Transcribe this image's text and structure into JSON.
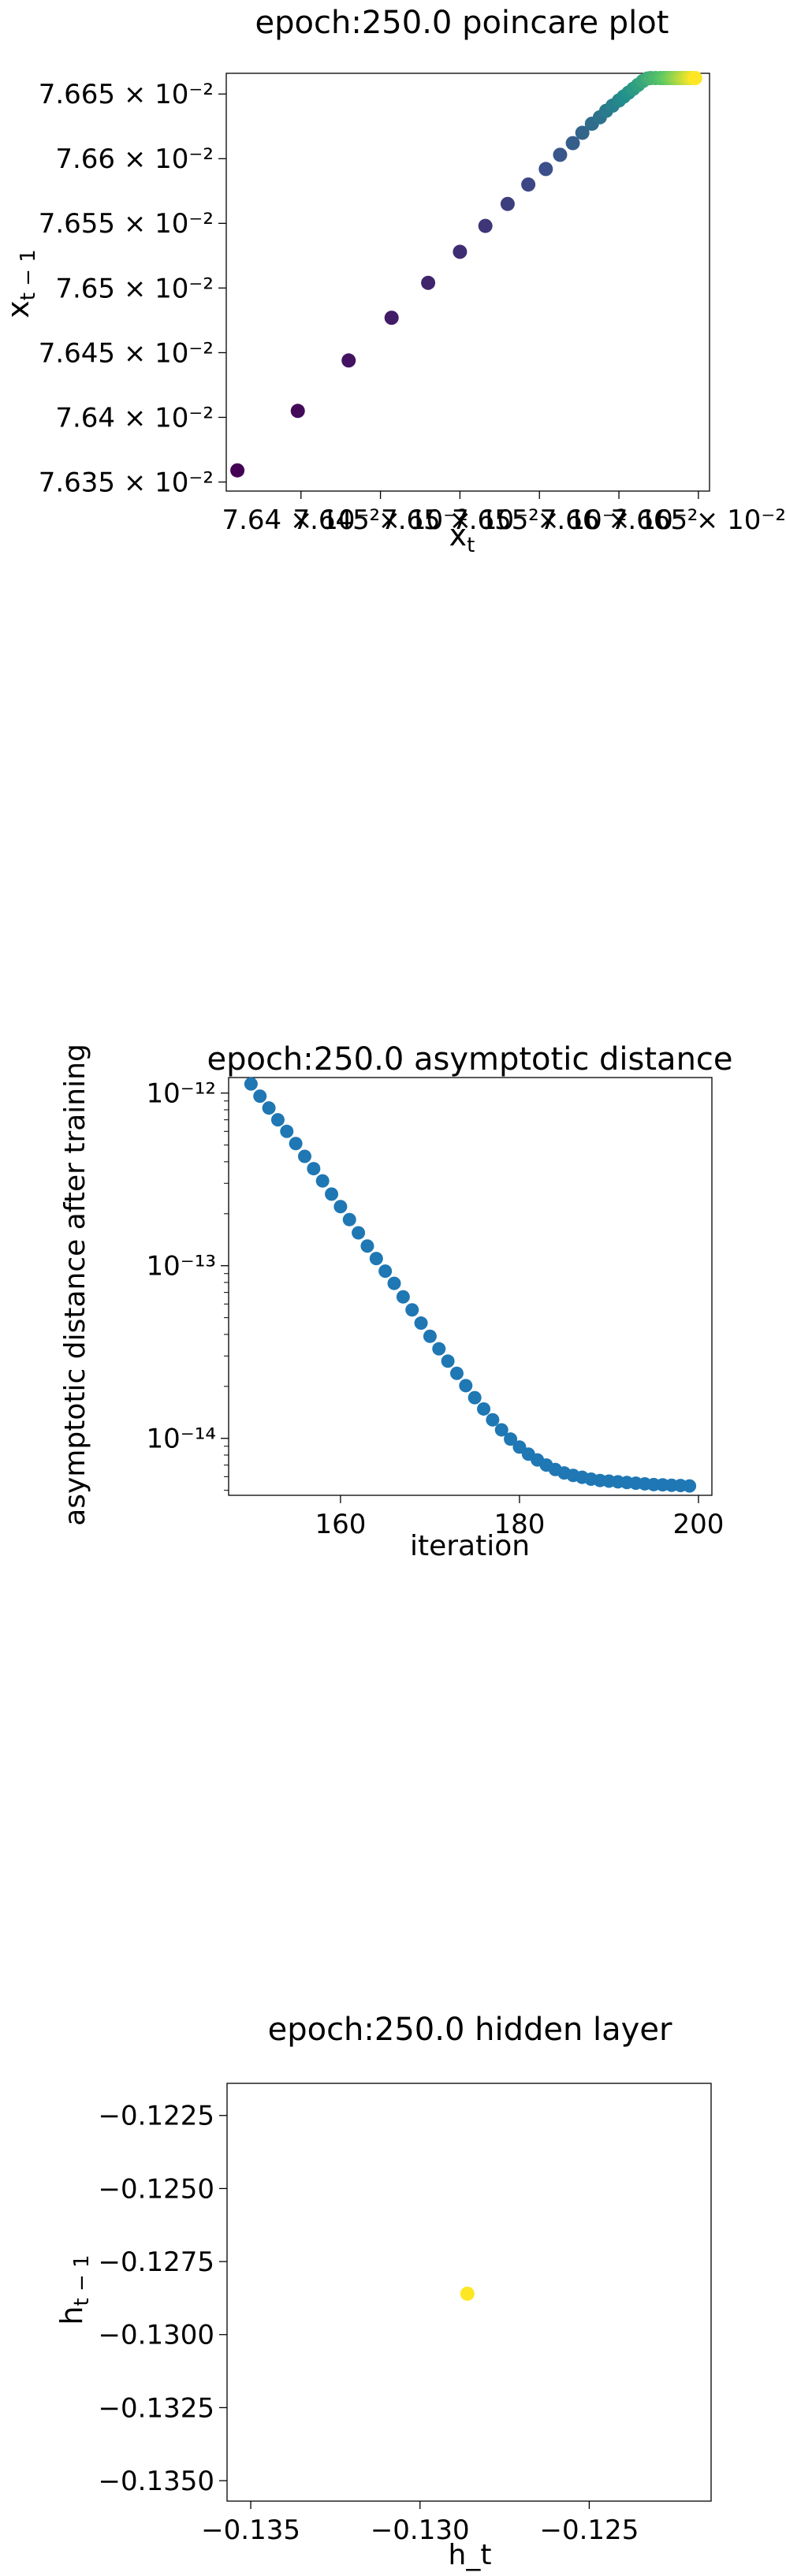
{
  "chart_data": [
    {
      "type": "scatter",
      "title": "epoch:250.0 poincare plot",
      "xlabel": "x",
      "xlabel_sub": "t",
      "ylabel": "x",
      "ylabel_sub": "t − 1",
      "xlim": [
        0.076353,
        0.076657
      ],
      "ylim": [
        0.076343,
        0.076666
      ],
      "x_ticks": [
        0.0764,
        0.07645,
        0.0765,
        0.07655,
        0.0766,
        0.07665
      ],
      "x_tick_labels": [
        "7.64 × 10⁻²",
        "7.645 × 10⁻²",
        "7.65 × 10⁻²",
        "7.655 × 10⁻²",
        "7.66 × 10⁻²",
        "7.665 × 10⁻²"
      ],
      "y_ticks": [
        0.07635,
        0.0764,
        0.07645,
        0.0765,
        0.07655,
        0.0766,
        0.07665
      ],
      "y_tick_labels": [
        "7.635 × 10⁻²",
        "7.64 × 10⁻²",
        "7.645 × 10⁻²",
        "7.65 × 10⁻²",
        "7.655 × 10⁻²",
        "7.66 × 10⁻²",
        "7.665 × 10⁻²"
      ],
      "colormap": [
        "#440154",
        "#3b528b",
        "#21918c",
        "#5ec962",
        "#fde725"
      ],
      "points": [
        {
          "x": 0.07636,
          "y": 0.076359
        },
        {
          "x": 0.076398,
          "y": 0.076405
        },
        {
          "x": 0.07643,
          "y": 0.076444
        },
        {
          "x": 0.076457,
          "y": 0.076477
        },
        {
          "x": 0.07648,
          "y": 0.076504
        },
        {
          "x": 0.0765,
          "y": 0.076528
        },
        {
          "x": 0.076516,
          "y": 0.076548
        },
        {
          "x": 0.07653,
          "y": 0.076565
        },
        {
          "x": 0.076543,
          "y": 0.07658
        },
        {
          "x": 0.076554,
          "y": 0.076592
        },
        {
          "x": 0.076563,
          "y": 0.076603
        },
        {
          "x": 0.076571,
          "y": 0.076612
        },
        {
          "x": 0.076577,
          "y": 0.07662
        },
        {
          "x": 0.076583,
          "y": 0.076627
        },
        {
          "x": 0.076588,
          "y": 0.076632
        },
        {
          "x": 0.076592,
          "y": 0.076637
        },
        {
          "x": 0.076596,
          "y": 0.076641
        },
        {
          "x": 0.0766,
          "y": 0.076645
        },
        {
          "x": 0.076603,
          "y": 0.076648
        },
        {
          "x": 0.076606,
          "y": 0.076651
        },
        {
          "x": 0.076609,
          "y": 0.076654
        },
        {
          "x": 0.076612,
          "y": 0.076657
        },
        {
          "x": 0.076615,
          "y": 0.07666
        },
        {
          "x": 0.076618,
          "y": 0.076662
        },
        {
          "x": 0.07662,
          "y": 0.076664
        },
        {
          "x": 0.076623,
          "y": 0.076666
        },
        {
          "x": 0.076626,
          "y": 0.076668
        },
        {
          "x": 0.076628,
          "y": 0.07667
        },
        {
          "x": 0.07663,
          "y": 0.076672
        },
        {
          "x": 0.076632,
          "y": 0.076674
        },
        {
          "x": 0.076634,
          "y": 0.076676
        },
        {
          "x": 0.076636,
          "y": 0.076678
        },
        {
          "x": 0.076638,
          "y": 0.07668
        },
        {
          "x": 0.07664,
          "y": 0.076682
        },
        {
          "x": 0.076642,
          "y": 0.076684
        },
        {
          "x": 0.076644,
          "y": 0.076686
        },
        {
          "x": 0.076646,
          "y": 0.076688
        },
        {
          "x": 0.076648,
          "y": 0.07669
        }
      ],
      "grid": false
    },
    {
      "type": "scatter",
      "title": "epoch:250.0 asymptotic distance",
      "xlabel": "iteration",
      "ylabel": "asymptotic distance after training",
      "xlim": [
        147.5,
        201.5
      ],
      "ylim_log10": [
        -14.33,
        -11.91
      ],
      "y_scale": "log",
      "x_ticks": [
        160,
        180,
        200
      ],
      "x_tick_labels": [
        "160",
        "180",
        "200"
      ],
      "y_ticks": [
        1e-14,
        1e-13,
        1e-12
      ],
      "y_tick_labels": [
        "10⁻¹⁴",
        "10⁻¹³",
        "10⁻¹²"
      ],
      "color": "#1f77b4",
      "x": [
        150,
        151,
        152,
        153,
        154,
        155,
        156,
        157,
        158,
        159,
        160,
        161,
        162,
        163,
        164,
        165,
        166,
        167,
        168,
        169,
        170,
        171,
        172,
        173,
        174,
        175,
        176,
        177,
        178,
        179,
        180,
        181,
        182,
        183,
        184,
        185,
        186,
        187,
        188,
        189,
        190,
        191,
        192,
        193,
        194,
        195,
        196,
        197,
        198,
        199
      ],
      "y": [
        1.13e-12,
        9.6e-13,
        8.2e-13,
        7e-13,
        6e-13,
        5.1e-13,
        4.3e-13,
        3.65e-13,
        3.1e-13,
        2.6e-13,
        2.2e-13,
        1.85e-13,
        1.55e-13,
        1.3e-13,
        1.1e-13,
        9.3e-14,
        7.9e-14,
        6.6e-14,
        5.55e-14,
        4.65e-14,
        3.9e-14,
        3.3e-14,
        2.8e-14,
        2.38e-14,
        2.02e-14,
        1.72e-14,
        1.48e-14,
        1.28e-14,
        1.12e-14,
        9.9e-15,
        8.9e-15,
        8.1e-15,
        7.5e-15,
        7e-15,
        6.6e-15,
        6.3e-15,
        6.1e-15,
        5.95e-15,
        5.8e-15,
        5.7e-15,
        5.65e-15,
        5.6e-15,
        5.55e-15,
        5.5e-15,
        5.45e-15,
        5.4e-15,
        5.38e-15,
        5.35e-15,
        5.33e-15,
        5.3e-15
      ],
      "grid": false
    },
    {
      "type": "scatter",
      "title": "epoch:250.0 hidden layer",
      "xlabel": "h_t",
      "ylabel": "h",
      "ylabel_sub": "t − 1",
      "xlim": [
        -0.1357,
        -0.1214
      ],
      "ylim": [
        -0.1357,
        -0.1214
      ],
      "x_ticks": [
        -0.135,
        -0.13,
        -0.125
      ],
      "x_tick_labels": [
        "−0.135",
        "−0.130",
        "−0.125"
      ],
      "y_ticks": [
        -0.135,
        -0.1325,
        -0.13,
        -0.1275,
        -0.125,
        -0.1225
      ],
      "y_tick_labels": [
        "−0.1350",
        "−0.1325",
        "−0.1300",
        "−0.1275",
        "−0.1250",
        "−0.1225"
      ],
      "color": "#fde725",
      "points": [
        {
          "x": -0.1286,
          "y": -0.1286
        }
      ],
      "grid": false
    }
  ]
}
